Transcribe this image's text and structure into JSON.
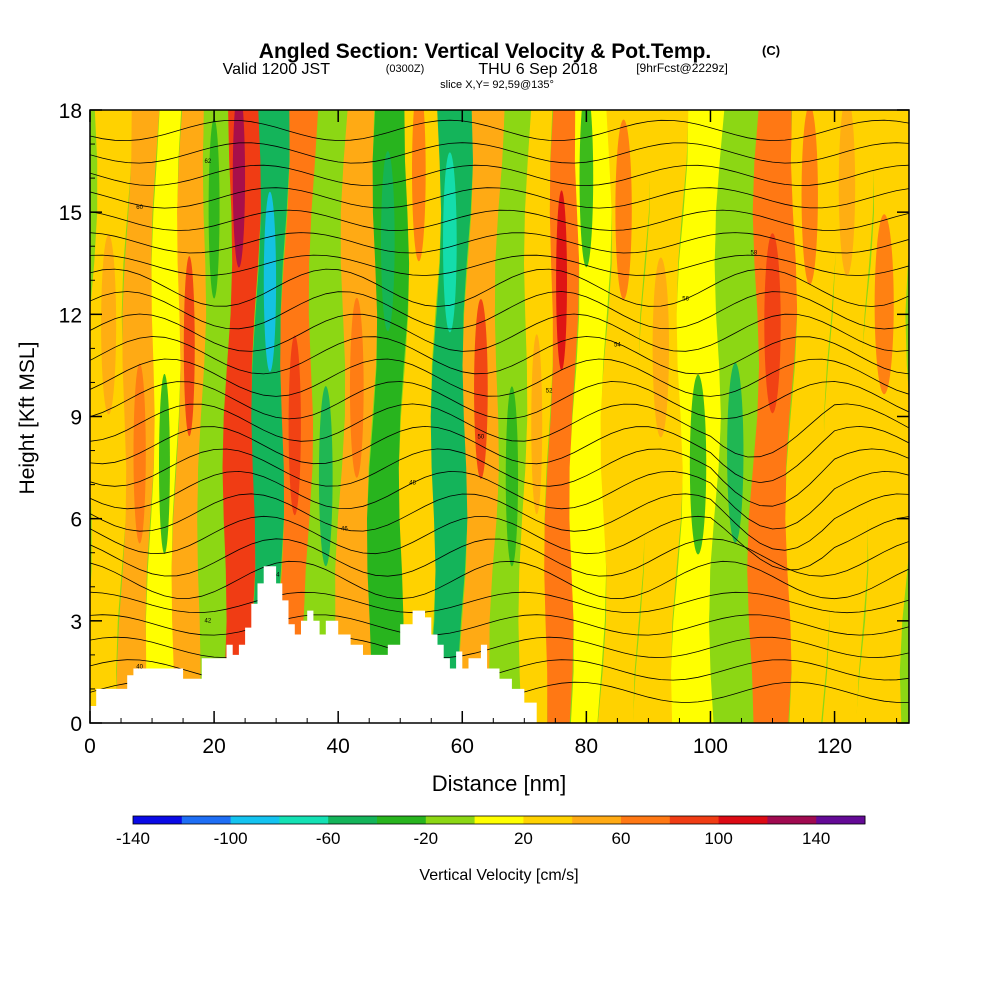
{
  "chart_data": {
    "type": "heatmap",
    "title": "Angled Section: Vertical Velocity & Pot.Temp.",
    "title_mark": "(C)",
    "subtitle": {
      "valid": "Valid 1200 JST",
      "utc": "(0300Z)",
      "date": "THU 6 Sep 2018",
      "fcst": "[9hrFcst@2229z]"
    },
    "slice_label": "slice X,Y= 92,59@135°",
    "xlabel": "Distance [nm]",
    "ylabel": "Height [Kft MSL]",
    "xlim": [
      0,
      132
    ],
    "ylim": [
      0,
      18
    ],
    "x_ticks": [
      "0",
      "20",
      "40",
      "60",
      "80",
      "100",
      "120"
    ],
    "y_ticks": [
      "0",
      "3",
      "6",
      "9",
      "12",
      "15",
      "18"
    ],
    "colorbar": {
      "label": "Vertical Velocity [cm/s]",
      "tick_labels": [
        "-140",
        "-100",
        "-60",
        "-20",
        "20",
        "60",
        "100",
        "140"
      ],
      "colors": [
        "#0a0ae6",
        "#1e6ef5",
        "#14c3f0",
        "#14e1b4",
        "#14b45a",
        "#28b41e",
        "#8cd714",
        "#ffff00",
        "#ffd200",
        "#ffaa14",
        "#ff7814",
        "#f03c14",
        "#dc0a14",
        "#a00a50",
        "#640a96"
      ]
    },
    "terrain_profile": {
      "x": [
        0,
        1,
        6,
        7,
        12,
        15,
        18,
        22,
        23,
        24,
        25,
        26,
        27,
        28,
        29,
        30,
        31,
        32,
        33,
        34,
        35,
        36,
        37,
        38,
        40,
        42,
        44,
        46,
        48,
        50,
        52,
        54,
        55,
        56,
        57,
        58,
        59,
        60,
        61,
        63,
        64,
        66,
        68,
        70,
        72
      ],
      "height_kft": [
        0.5,
        1.0,
        1.4,
        1.6,
        1.6,
        1.3,
        1.9,
        2.3,
        2.0,
        2.3,
        2.8,
        3.5,
        4.1,
        4.6,
        4.6,
        4.1,
        3.6,
        2.9,
        2.6,
        3.0,
        3.3,
        3.0,
        2.6,
        3.0,
        2.6,
        2.3,
        2.0,
        2.0,
        2.3,
        2.9,
        3.3,
        3.1,
        2.6,
        2.3,
        1.9,
        1.6,
        2.1,
        1.6,
        1.9,
        2.3,
        1.6,
        1.3,
        1.0,
        0.6,
        0.0
      ]
    },
    "velocity_field_cm_s": {
      "description": "vertical velocity bands by distance",
      "x_band_centers": [
        3,
        8,
        12,
        16,
        20,
        24,
        29,
        33,
        38,
        43,
        48,
        53,
        58,
        63,
        68,
        72,
        76,
        80,
        86,
        92,
        98,
        104,
        110,
        116,
        122,
        128
      ],
      "values": [
        10,
        30,
        -10,
        40,
        -20,
        80,
        -70,
        50,
        -30,
        30,
        -40,
        20,
        -60,
        40,
        -20,
        10,
        60,
        -10,
        20,
        10,
        -5,
        -30,
        50,
        20,
        10,
        20
      ]
    },
    "isentrope_labels": [
      "40",
      "42",
      "44",
      "46",
      "48",
      "50",
      "52",
      "54",
      "56",
      "58",
      "60",
      "62"
    ]
  }
}
